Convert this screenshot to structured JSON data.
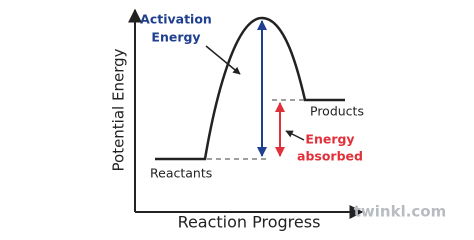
{
  "labels": {
    "activation_energy": [
      "Activation",
      "Energy"
    ],
    "products": "Products",
    "energy_absorbed": [
      "Energy",
      "absorbed"
    ],
    "reactants": "Reactants",
    "y_axis": "Potential Energy",
    "x_axis": "Reaction Progress",
    "watermark": "twinkl.com"
  }
}
